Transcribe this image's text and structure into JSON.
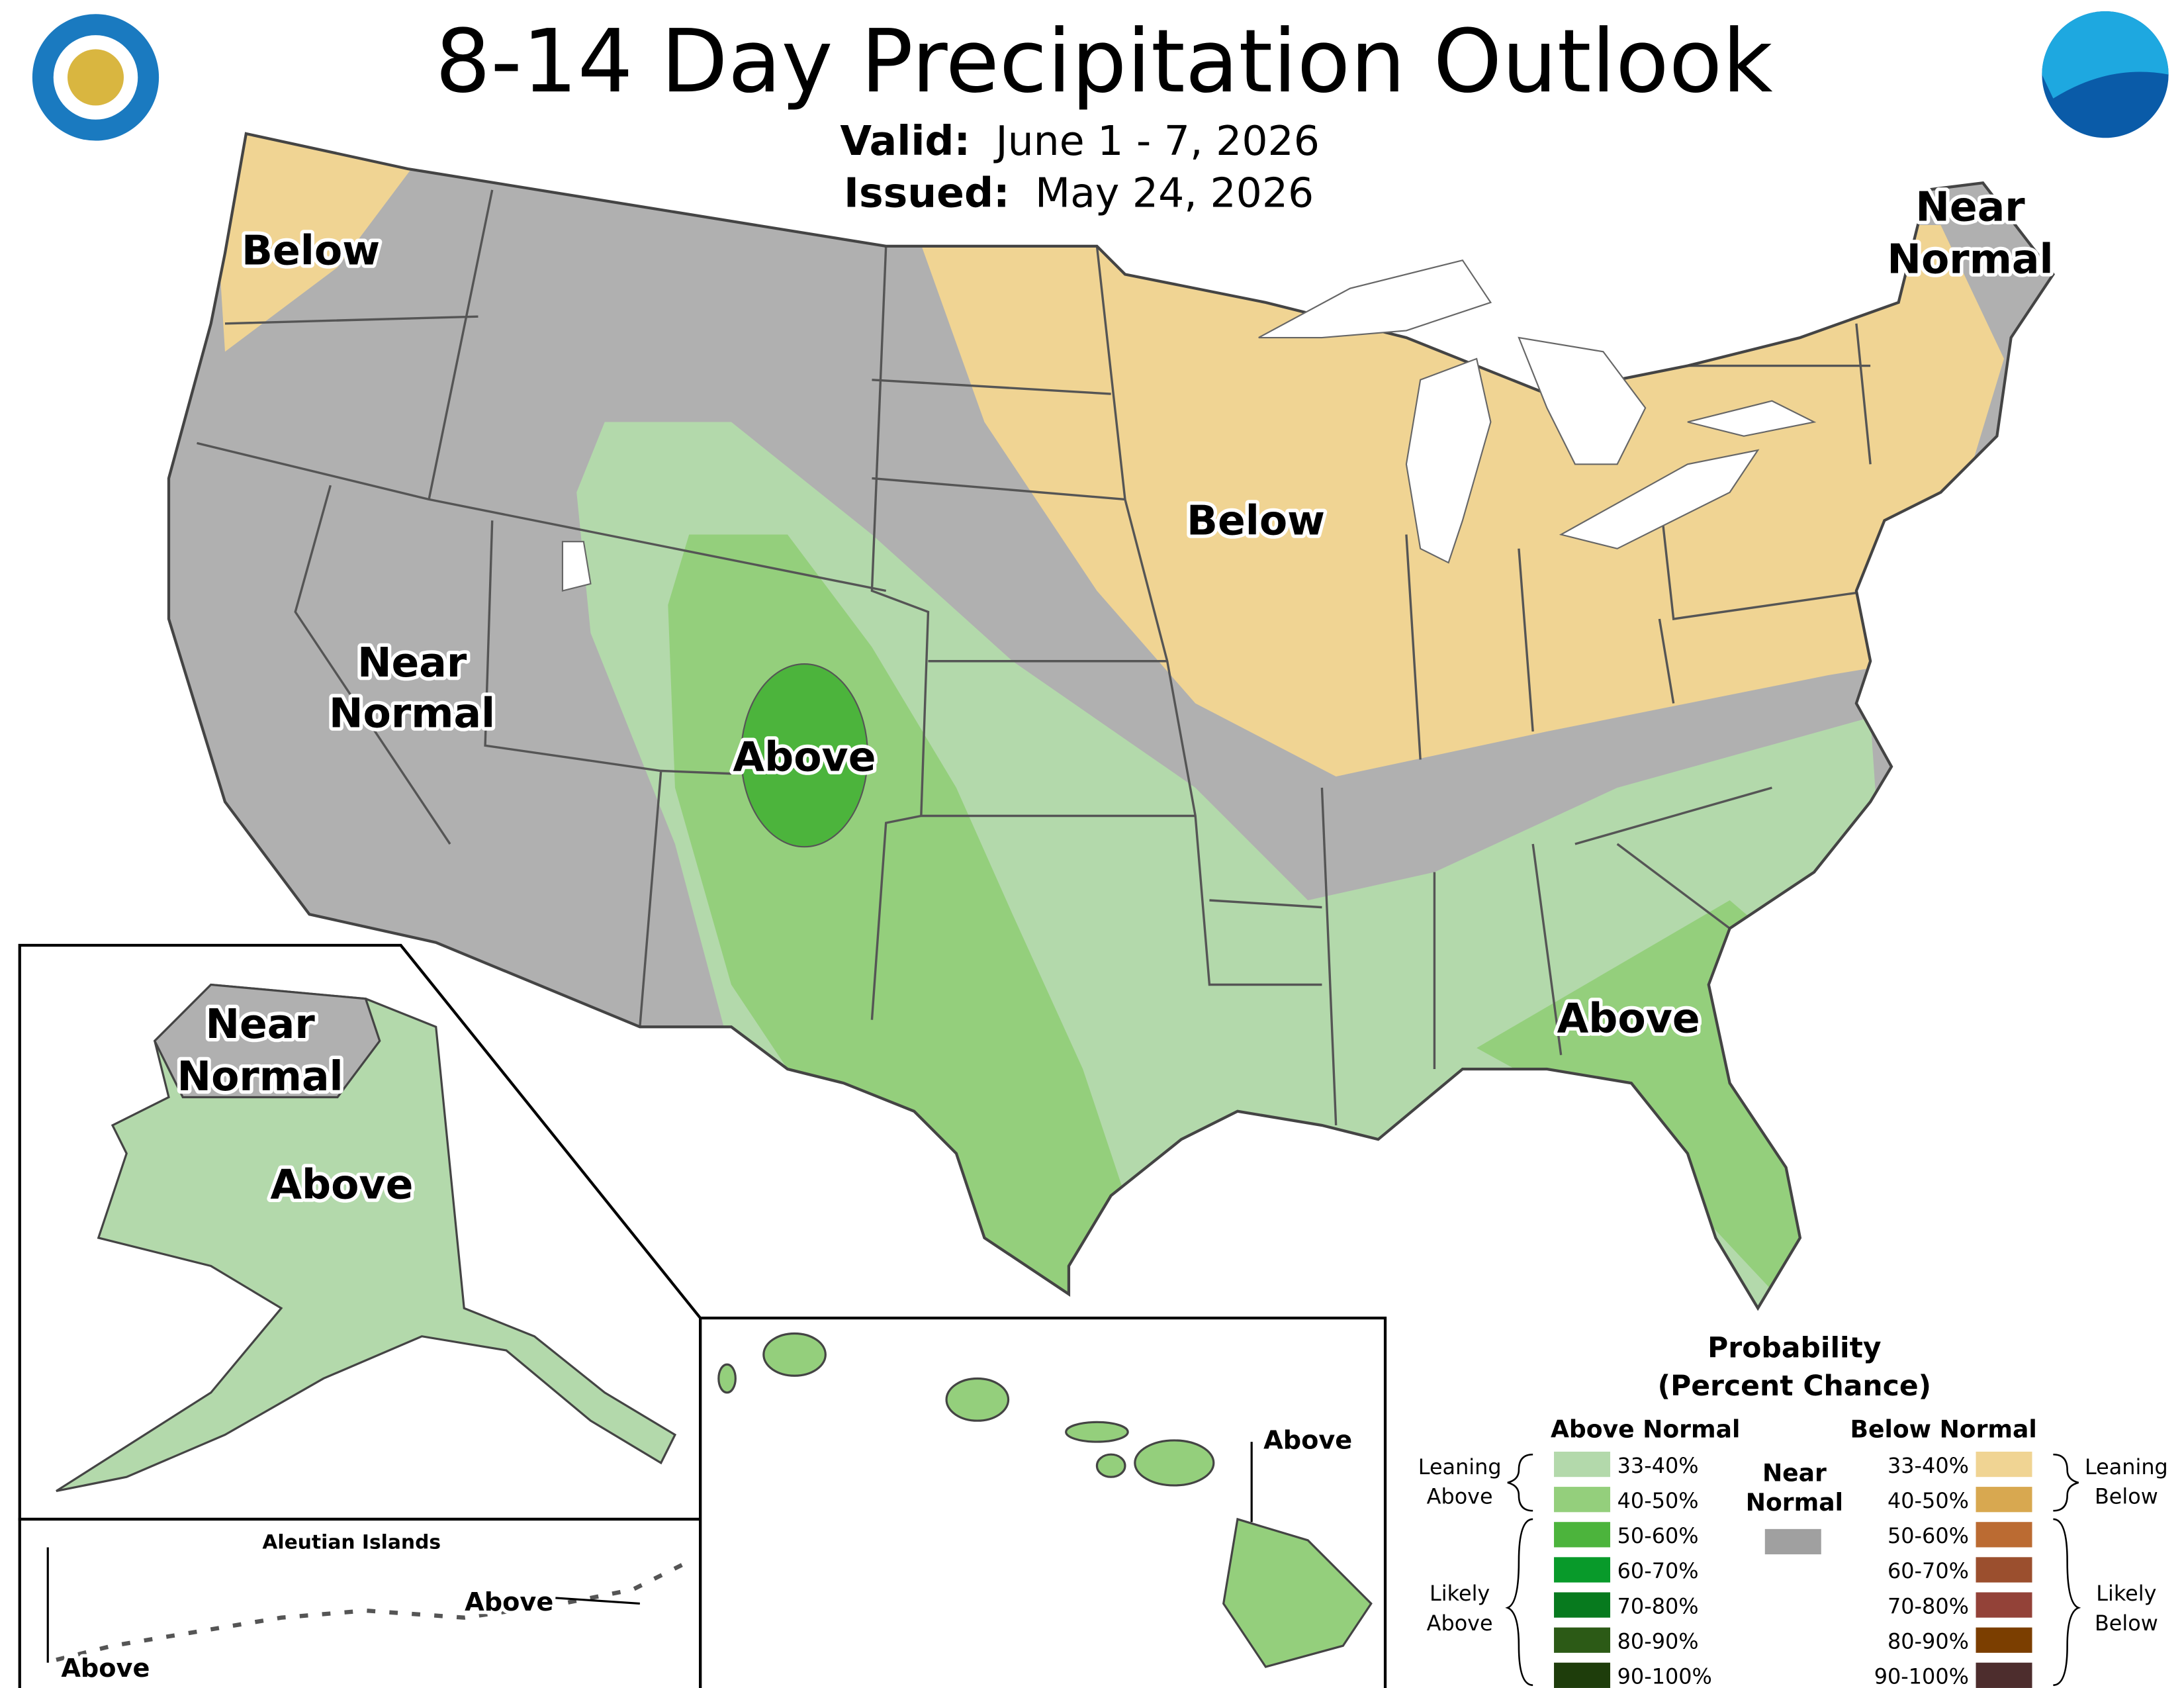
{
  "header": {
    "title": "8-14 Day Precipitation Outlook",
    "valid_label": "Valid:",
    "valid": "June 1 - 7, 2026",
    "issued_label": "Issued:",
    "issued": "May 24, 2026"
  },
  "map_labels": {
    "northwest": "Below",
    "midwest": "Below",
    "west": [
      "Near",
      "Normal"
    ],
    "rockies": "Above",
    "southeast": "Above",
    "northeast": [
      "Near",
      "Normal"
    ],
    "alaska_north": [
      "Near",
      "Normal"
    ],
    "alaska": "Above",
    "hawaii": "Above",
    "aleutian_title": "Aleutian Islands",
    "aleutian_east": "Above",
    "aleutian_west": "Above"
  },
  "legend": {
    "title": [
      "Probability",
      "(Percent Chance)"
    ],
    "above_heading": "Above Normal",
    "below_heading": "Below Normal",
    "near_heading": [
      "Near",
      "Normal"
    ],
    "near_color": "#a0a0a0",
    "above": [
      {
        "label": "33-40%",
        "color": "#b3d9ab"
      },
      {
        "label": "40-50%",
        "color": "#94cf7c"
      },
      {
        "label": "50-60%",
        "color": "#4cb43c"
      },
      {
        "label": "60-70%",
        "color": "#089a2a"
      },
      {
        "label": "70-80%",
        "color": "#077a1e"
      },
      {
        "label": "80-90%",
        "color": "#2c5a16"
      },
      {
        "label": "90-100%",
        "color": "#1e3d0b"
      }
    ],
    "below": [
      {
        "label": "33-40%",
        "color": "#f0d493"
      },
      {
        "label": "40-50%",
        "color": "#d8a850"
      },
      {
        "label": "50-60%",
        "color": "#bb6b32"
      },
      {
        "label": "60-70%",
        "color": "#9b4f2e"
      },
      {
        "label": "70-80%",
        "color": "#934238"
      },
      {
        "label": "80-90%",
        "color": "#7b3e00"
      },
      {
        "label": "90-100%",
        "color": "#4d2d2d"
      }
    ],
    "leaning_above": [
      "Leaning",
      "Above"
    ],
    "likely_above": [
      "Likely",
      "Above"
    ],
    "leaning_below": [
      "Leaning",
      "Below"
    ],
    "likely_below": [
      "Likely",
      "Below"
    ]
  }
}
